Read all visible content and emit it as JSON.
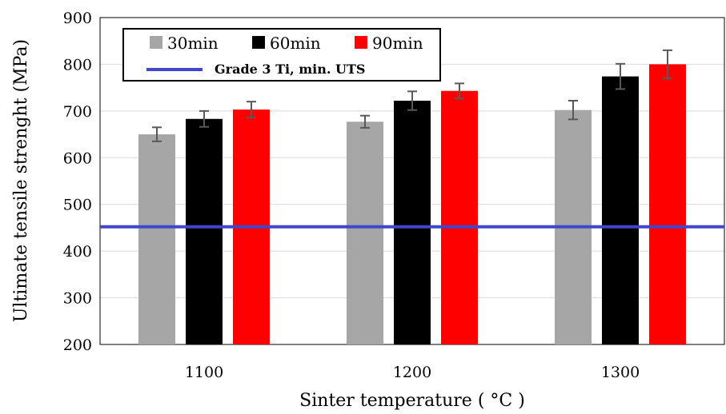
{
  "chart_data": {
    "type": "bar",
    "xlabel": "Sinter temperature ( °C )",
    "ylabel": "Ultimate tensile strenght (MPa)",
    "ylim": [
      200,
      900
    ],
    "yticks": [
      "200",
      "300",
      "400",
      "500",
      "600",
      "700",
      "800",
      "900"
    ],
    "categories": [
      "1100",
      "1200",
      "1300"
    ],
    "series": [
      {
        "name": "30min",
        "color": "#a6a6a6",
        "values": [
          650,
          677,
          702
        ],
        "errors": [
          15,
          13,
          20
        ]
      },
      {
        "name": "60min",
        "color": "#000000",
        "values": [
          683,
          722,
          774
        ],
        "errors": [
          17,
          20,
          27
        ]
      },
      {
        "name": "90min",
        "color": "#ff0000",
        "values": [
          703,
          743,
          800
        ],
        "errors": [
          17,
          16,
          30
        ]
      }
    ],
    "reference_line": {
      "name": "Grade 3 Ti, min. UTS",
      "value": 452,
      "color": "#3f48cc"
    },
    "grid": true,
    "legend": "top-left"
  }
}
